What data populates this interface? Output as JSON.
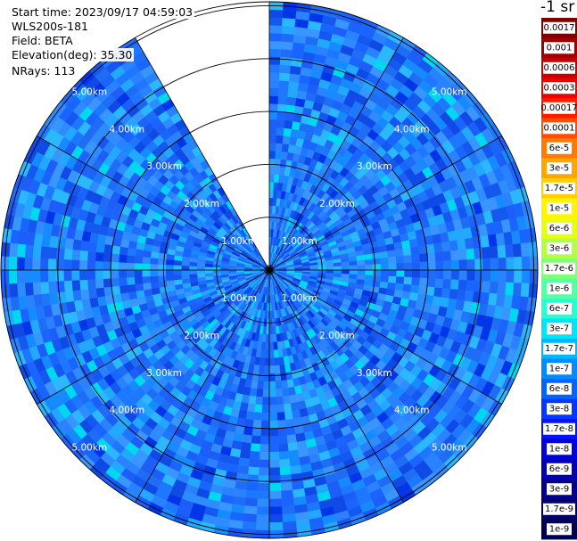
{
  "header": {
    "start_time": "Start time: 2023/09/17 04:59:03",
    "instrument": "WLS200s-181",
    "field": "Field: BETA",
    "elevation": "Elevation(deg): 35.30",
    "nrays": "NRays: 113"
  },
  "colorbar": {
    "unit_label": "-1 sr",
    "labels": [
      "0.0017",
      "0.001",
      "0.0006",
      "0.0003",
      "0.00017",
      "0.0001",
      "6e-5",
      "3e-5",
      "1.7e-5",
      "1e-5",
      "6e-6",
      "3e-6",
      "1.7e-6",
      "1e-6",
      "6e-7",
      "3e-7",
      "1.7e-7",
      "1e-7",
      "6e-8",
      "3e-8",
      "1.7e-8",
      "1e-8",
      "6e-9",
      "3e-9",
      "1.7e-9",
      "1e-9"
    ],
    "colors": [
      "#7f0000",
      "#a00000",
      "#c80000",
      "#ee0000",
      "#ff1a00",
      "#ff4c00",
      "#ff7a00",
      "#ffa500",
      "#ffcf00",
      "#fff500",
      "#e6ff12",
      "#b4ff44",
      "#84ff73",
      "#55ffa2",
      "#26ffd1",
      "#00e4f8",
      "#00b8ff",
      "#008cff",
      "#0064ff",
      "#0038ff",
      "#0014f5",
      "#0000d8",
      "#0000b4",
      "#000090",
      "#00006c",
      "#000050"
    ]
  },
  "chart_data": {
    "type": "heatmap",
    "projection": "polar PPI scan",
    "field": "BETA",
    "unit": "-1 sr",
    "color_scale": "log",
    "value_range": [
      1e-09,
      0.0017
    ],
    "range_rings_km": [
      1.0,
      2.0,
      3.0,
      4.0,
      5.0
    ],
    "ring_labels": [
      "1.00km",
      "2.00km",
      "3.00km",
      "4.00km",
      "5.00km"
    ],
    "max_range_km": 5.0,
    "radial_lines_deg": [
      0,
      30,
      60,
      90,
      120,
      150,
      180,
      210,
      240,
      270,
      300,
      330
    ],
    "missing_sector_deg": [
      332,
      359
    ],
    "nrays": 113,
    "elevation_deg": 35.3,
    "dominant_value_range": [
      3e-08,
      1.7e-07
    ]
  }
}
